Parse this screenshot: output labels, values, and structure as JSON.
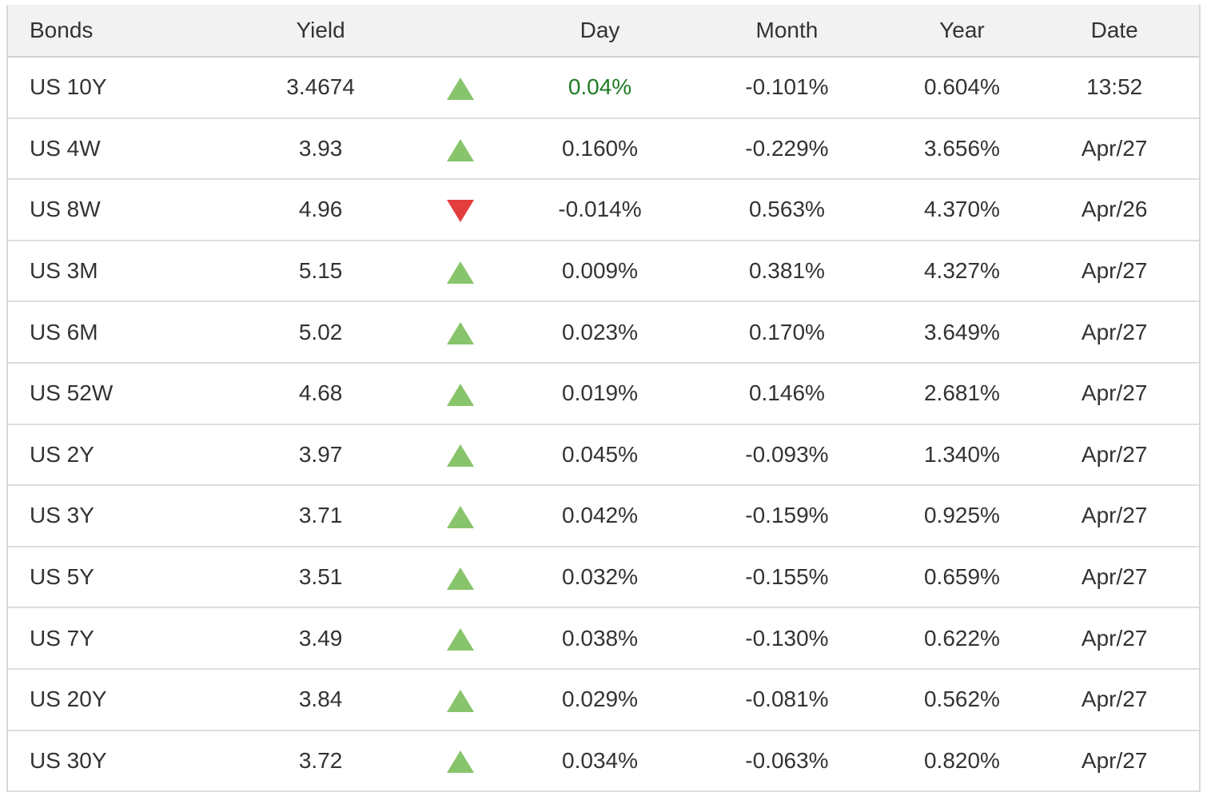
{
  "colors": {
    "up_triangle": "#88c46b",
    "down_triangle": "#e43d3d",
    "day_highlight_text": "#1e7b22",
    "header_background": "#f2f2f2",
    "text": "#333333"
  },
  "table": {
    "headers": {
      "bonds": "Bonds",
      "yield": "Yield",
      "trend": "",
      "day": "Day",
      "month": "Month",
      "year": "Year",
      "date": "Date"
    },
    "rows": [
      {
        "bond": "US 10Y",
        "yield": "3.4674",
        "direction": "up",
        "day": "0.04%",
        "day_highlight": true,
        "month": "-0.101%",
        "year": "0.604%",
        "date": "13:52"
      },
      {
        "bond": "US 4W",
        "yield": "3.93",
        "direction": "up",
        "day": "0.160%",
        "day_highlight": false,
        "month": "-0.229%",
        "year": "3.656%",
        "date": "Apr/27"
      },
      {
        "bond": "US 8W",
        "yield": "4.96",
        "direction": "down",
        "day": "-0.014%",
        "day_highlight": false,
        "month": "0.563%",
        "year": "4.370%",
        "date": "Apr/26"
      },
      {
        "bond": "US 3M",
        "yield": "5.15",
        "direction": "up",
        "day": "0.009%",
        "day_highlight": false,
        "month": "0.381%",
        "year": "4.327%",
        "date": "Apr/27"
      },
      {
        "bond": "US 6M",
        "yield": "5.02",
        "direction": "up",
        "day": "0.023%",
        "day_highlight": false,
        "month": "0.170%",
        "year": "3.649%",
        "date": "Apr/27"
      },
      {
        "bond": "US 52W",
        "yield": "4.68",
        "direction": "up",
        "day": "0.019%",
        "day_highlight": false,
        "month": "0.146%",
        "year": "2.681%",
        "date": "Apr/27"
      },
      {
        "bond": "US 2Y",
        "yield": "3.97",
        "direction": "up",
        "day": "0.045%",
        "day_highlight": false,
        "month": "-0.093%",
        "year": "1.340%",
        "date": "Apr/27"
      },
      {
        "bond": "US 3Y",
        "yield": "3.71",
        "direction": "up",
        "day": "0.042%",
        "day_highlight": false,
        "month": "-0.159%",
        "year": "0.925%",
        "date": "Apr/27"
      },
      {
        "bond": "US 5Y",
        "yield": "3.51",
        "direction": "up",
        "day": "0.032%",
        "day_highlight": false,
        "month": "-0.155%",
        "year": "0.659%",
        "date": "Apr/27"
      },
      {
        "bond": "US 7Y",
        "yield": "3.49",
        "direction": "up",
        "day": "0.038%",
        "day_highlight": false,
        "month": "-0.130%",
        "year": "0.622%",
        "date": "Apr/27"
      },
      {
        "bond": "US 20Y",
        "yield": "3.84",
        "direction": "up",
        "day": "0.029%",
        "day_highlight": false,
        "month": "-0.081%",
        "year": "0.562%",
        "date": "Apr/27"
      },
      {
        "bond": "US 30Y",
        "yield": "3.72",
        "direction": "up",
        "day": "0.034%",
        "day_highlight": false,
        "month": "-0.063%",
        "year": "0.820%",
        "date": "Apr/27"
      }
    ]
  }
}
